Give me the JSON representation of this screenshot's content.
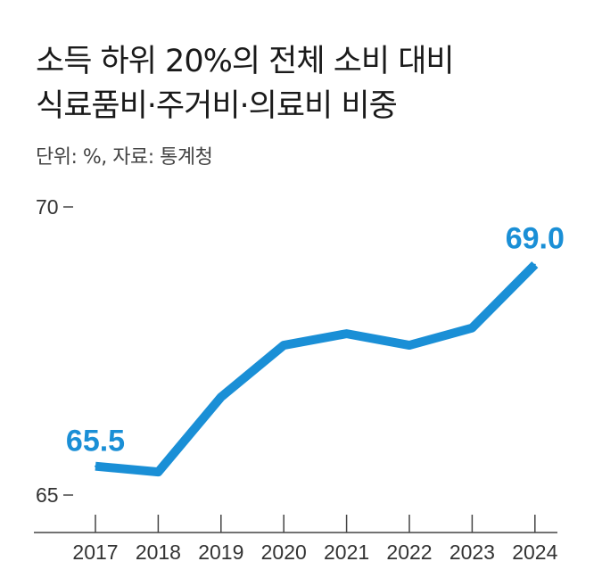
{
  "title": {
    "line1": "소득 하위 20%의 전체 소비 대비",
    "line2": "식료품비·주거비·의료비 비중"
  },
  "unit_source": "단위: %, 자료: 통계청",
  "colors": {
    "line": "#1a8fd6",
    "axis": "#444444",
    "text": "#333333"
  },
  "chart_data": {
    "type": "line",
    "title": "소득 하위 20%의 전체 소비 대비 식료품비·주거비·의료비 비중",
    "categories": [
      "2017",
      "2018",
      "2019",
      "2020",
      "2021",
      "2022",
      "2023",
      "2024"
    ],
    "series": [
      {
        "values": [
          65.5,
          65.4,
          66.7,
          67.6,
          67.8,
          67.6,
          67.9,
          69.0
        ]
      }
    ],
    "data_labels": [
      {
        "index": 0,
        "text": "65.5"
      },
      {
        "index": 7,
        "text": "69.0"
      }
    ],
    "yticks": [
      65,
      70
    ],
    "ylim": [
      65,
      70
    ],
    "grid": false,
    "legend": "none"
  }
}
